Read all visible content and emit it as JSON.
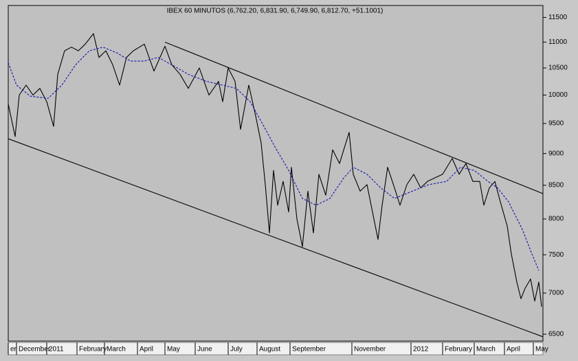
{
  "chart_data": {
    "type": "line",
    "title": "IBEX 60 MINUTOS (6,762.20, 6,831.90, 6,749.90, 6,812.70, +51.1001)",
    "log_scale": true,
    "ylim": [
      6420,
      11750
    ],
    "yticks": [
      6500,
      7000,
      7500,
      8000,
      8500,
      9000,
      9500,
      10000,
      10500,
      11000,
      11500
    ],
    "xlim": [
      0,
      389
    ],
    "xticks": [
      {
        "value": 0,
        "label": "er"
      },
      {
        "value": 6,
        "label": "December"
      },
      {
        "value": 28,
        "label": "2011"
      },
      {
        "value": 50,
        "label": "February"
      },
      {
        "value": 70,
        "label": "March"
      },
      {
        "value": 94,
        "label": "April"
      },
      {
        "value": 114,
        "label": "May"
      },
      {
        "value": 136,
        "label": "June"
      },
      {
        "value": 160,
        "label": "July"
      },
      {
        "value": 181,
        "label": "August"
      },
      {
        "value": 205,
        "label": "September"
      },
      {
        "value": 250,
        "label": "November"
      },
      {
        "value": 293,
        "label": "2012"
      },
      {
        "value": 316,
        "label": "February"
      },
      {
        "value": 339,
        "label": "March"
      },
      {
        "value": 361,
        "label": "April"
      },
      {
        "value": 382,
        "label": "May"
      }
    ],
    "series": [
      {
        "color": "#000000",
        "dash": false,
        "x": [
          0,
          5,
          8,
          13,
          18,
          23,
          28,
          33,
          36,
          41,
          46,
          51,
          56,
          62,
          66,
          71,
          76,
          81,
          86,
          91,
          99,
          106,
          114,
          119,
          125,
          131,
          139,
          146,
          153,
          156,
          160,
          165,
          169,
          175,
          180,
          184,
          187,
          190,
          193,
          196,
          200,
          204,
          206,
          210,
          214,
          218,
          222,
          226,
          231,
          236,
          241,
          248,
          251,
          256,
          261,
          266,
          269,
          272,
          276,
          281,
          285,
          290,
          295,
          300,
          305,
          310,
          316,
          323,
          328,
          333,
          338,
          343,
          346,
          350,
          354,
          358,
          363,
          366,
          370,
          373,
          376,
          380,
          383,
          386,
          388
        ],
        "values": [
          9840,
          9280,
          10000,
          10180,
          10000,
          10120,
          9880,
          9450,
          10380,
          10830,
          10900,
          10830,
          10960,
          11170,
          10700,
          10830,
          10560,
          10180,
          10700,
          10830,
          10960,
          10440,
          10920,
          10560,
          10380,
          10120,
          10500,
          10000,
          10250,
          9880,
          10500,
          10250,
          9400,
          10180,
          9630,
          9170,
          8510,
          7800,
          8730,
          8200,
          8560,
          8100,
          8780,
          8000,
          7610,
          8410,
          7800,
          8670,
          8350,
          9060,
          8840,
          9350,
          8670,
          8410,
          8510,
          8000,
          7710,
          8200,
          8780,
          8460,
          8200,
          8510,
          8670,
          8460,
          8560,
          8610,
          8670,
          8920,
          8670,
          8840,
          8560,
          8560,
          8200,
          8460,
          8560,
          8250,
          7900,
          7510,
          7140,
          6930,
          7060,
          7180,
          6900,
          7140,
          6830
        ]
      },
      {
        "color": "#1f1fb4",
        "dash": true,
        "x": [
          0,
          6,
          16,
          29,
          39,
          49,
          59,
          69,
          79,
          89,
          99,
          109,
          119,
          131,
          144,
          156,
          166,
          176,
          186,
          194,
          204,
          214,
          224,
          234,
          244,
          251,
          261,
          271,
          281,
          294,
          306,
          319,
          329,
          339,
          349,
          356,
          364,
          374,
          381,
          386
        ],
        "values": [
          10600,
          10180,
          9980,
          9940,
          10180,
          10560,
          10830,
          10900,
          10790,
          10630,
          10630,
          10700,
          10560,
          10380,
          10250,
          10180,
          10120,
          9880,
          9450,
          9110,
          8730,
          8300,
          8200,
          8300,
          8610,
          8780,
          8670,
          8460,
          8300,
          8410,
          8510,
          8560,
          8780,
          8730,
          8560,
          8460,
          8250,
          7850,
          7510,
          7290
        ]
      },
      {
        "color": "#000000",
        "dash": false,
        "x": [
          114,
          389
        ],
        "values": [
          11000,
          8373
        ]
      },
      {
        "color": "#000000",
        "dash": false,
        "x": [
          0,
          389
        ],
        "values": [
          9243,
          6470
        ]
      }
    ]
  }
}
